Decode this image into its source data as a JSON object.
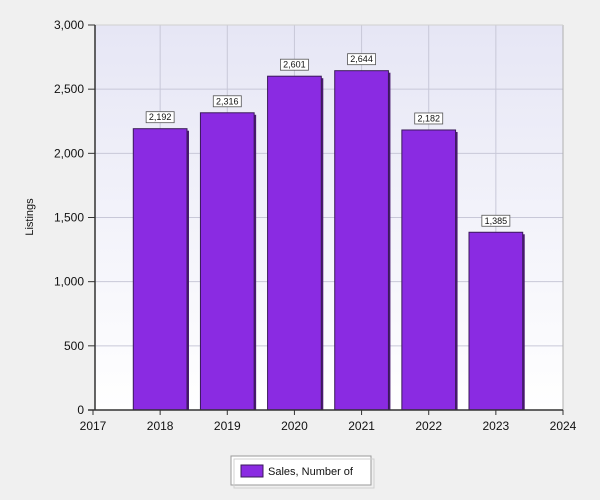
{
  "chart_data": {
    "type": "bar",
    "ylabel": "Listings",
    "ylim": [
      0,
      3000
    ],
    "yticks": [
      0,
      500,
      1000,
      1500,
      2000,
      2500,
      3000
    ],
    "ytick_labels": [
      "0",
      "500",
      "1,000",
      "1,500",
      "2,000",
      "2,500",
      "3,000"
    ],
    "xlim": [
      2017,
      2024
    ],
    "xticks": [
      "2017",
      "2018",
      "2019",
      "2020",
      "2021",
      "2022",
      "2023",
      "2024"
    ],
    "categories": [
      "2018",
      "2019",
      "2020",
      "2021",
      "2022",
      "2023"
    ],
    "series": [
      {
        "name": "Sales, Number of",
        "values": [
          2192,
          2316,
          2601,
          2644,
          2182,
          1385
        ],
        "labels": [
          "2,192",
          "2,316",
          "2,601",
          "2,644",
          "2,182",
          "1,385"
        ],
        "color": "#8a2be2"
      }
    ],
    "grid": true,
    "legend_position": "bottom-center"
  },
  "colors": {
    "plot_bg_top": "#e8e8f6",
    "plot_bg_bottom": "#ffffff",
    "grid": "#c8c8d8",
    "bar_fill": "#8a2be2",
    "bar_edge": "#3a1a5a"
  }
}
